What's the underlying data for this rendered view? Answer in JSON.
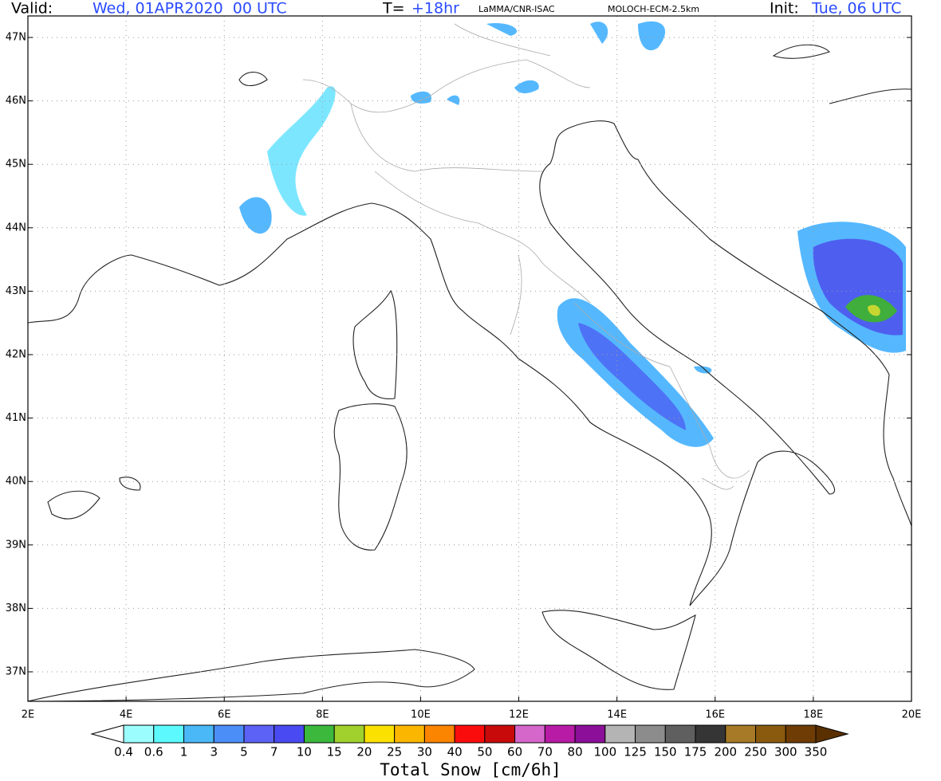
{
  "header": {
    "valid_label": "Valid:",
    "valid_time": "Wed, 01APR2020  00 UTC",
    "t_label": "T=",
    "t_value": "+18hr",
    "source": "LaMMA/CNR-ISAC",
    "model": "MOLOCH-ECM-2.5km",
    "init_label": "Init:",
    "init_time": "Tue, 06 UTC"
  },
  "map": {
    "lat_labels": [
      "47N",
      "46N",
      "45N",
      "44N",
      "43N",
      "42N",
      "41N",
      "40N",
      "39N",
      "38N",
      "37N"
    ],
    "lon_labels": [
      "2E",
      "4E",
      "6E",
      "8E",
      "10E",
      "12E",
      "14E",
      "16E",
      "18E",
      "20E"
    ]
  },
  "colorbar": {
    "title": "Total Snow [cm/6h]",
    "labels": [
      "0.4",
      "0.6",
      "1",
      "3",
      "5",
      "7",
      "10",
      "15",
      "20",
      "25",
      "30",
      "40",
      "50",
      "60",
      "70",
      "80",
      "100",
      "125",
      "150",
      "175",
      "200",
      "250",
      "300",
      "350"
    ],
    "colors": [
      "#9cfdff",
      "#5cfaff",
      "#4ab8f6",
      "#4b8ef8",
      "#5c62f5",
      "#4a4af2",
      "#3cb83c",
      "#a0d12c",
      "#fbe100",
      "#fbb600",
      "#fb8400",
      "#fb0c0c",
      "#c80a0a",
      "#d567cb",
      "#b81ba6",
      "#8b0f98",
      "#b4b4b4",
      "#8c8c8c",
      "#5f5f5f",
      "#353535",
      "#a67a26",
      "#8a5a0e",
      "#6e3c04"
    ],
    "under_color": "#ffffff",
    "over_color": "#5a3000"
  }
}
